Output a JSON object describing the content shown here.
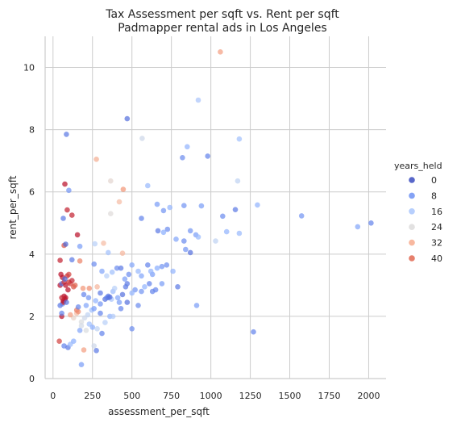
{
  "chart_data": {
    "type": "scatter",
    "title": "Tax Assessment per sqft vs. Rent per sqft",
    "subtitle": "Padmapper rental ads in Los Angeles",
    "xlabel": "assessment_per_sqft",
    "ylabel": "rent_per_sqft",
    "xlim": [
      -50,
      2110
    ],
    "ylim": [
      0,
      11
    ],
    "x_ticks": [
      0,
      250,
      500,
      750,
      1000,
      1250,
      1500,
      1750,
      2000
    ],
    "y_ticks": [
      0,
      2,
      4,
      6,
      8,
      10
    ],
    "grid": true,
    "hue": "years_held",
    "colormap": "coolwarm",
    "hue_range": [
      0,
      45
    ],
    "legend": {
      "title": "years_held",
      "placement": "right",
      "entries": [
        {
          "label": "0",
          "value": 0,
          "color": "#3b4cc0"
        },
        {
          "label": "8",
          "value": 8,
          "color": "#6f92f3"
        },
        {
          "label": "16",
          "value": 16,
          "color": "#aac7fd"
        },
        {
          "label": "24",
          "value": 24,
          "color": "#dddcdc"
        },
        {
          "label": "32",
          "value": 32,
          "color": "#f7ac8e"
        },
        {
          "label": "40",
          "value": 40,
          "color": "#e26952"
        }
      ]
    },
    "points": [
      [
        1060,
        10.5,
        33
      ],
      [
        920,
        8.95,
        15
      ],
      [
        470,
        8.35,
        4
      ],
      [
        85,
        7.85,
        5
      ],
      [
        565,
        7.72,
        20
      ],
      [
        850,
        7.45,
        12
      ],
      [
        1180,
        7.7,
        14
      ],
      [
        980,
        7.15,
        6
      ],
      [
        820,
        7.1,
        7
      ],
      [
        275,
        7.05,
        31
      ],
      [
        600,
        6.2,
        13
      ],
      [
        1170,
        6.35,
        18
      ],
      [
        75,
        6.25,
        44
      ],
      [
        100,
        6.05,
        8
      ],
      [
        445,
        6.08,
        34
      ],
      [
        365,
        6.35,
        24
      ],
      [
        65,
        5.15,
        5
      ],
      [
        90,
        5.42,
        43
      ],
      [
        120,
        5.25,
        43
      ],
      [
        560,
        5.15,
        6
      ],
      [
        660,
        5.6,
        9
      ],
      [
        700,
        5.4,
        8
      ],
      [
        740,
        5.5,
        12
      ],
      [
        830,
        5.56,
        8
      ],
      [
        940,
        5.55,
        9
      ],
      [
        1075,
        5.22,
        7
      ],
      [
        1155,
        5.43,
        5
      ],
      [
        1295,
        5.58,
        12
      ],
      [
        1575,
        5.23,
        8
      ],
      [
        2015,
        5.0,
        6
      ],
      [
        1930,
        4.88,
        10
      ],
      [
        1100,
        4.72,
        12
      ],
      [
        1180,
        4.67,
        13
      ],
      [
        1030,
        4.42,
        18
      ],
      [
        420,
        5.68,
        29
      ],
      [
        365,
        5.3,
        23
      ],
      [
        320,
        4.35,
        29
      ],
      [
        265,
        4.33,
        17
      ],
      [
        70,
        4.28,
        40
      ],
      [
        80,
        4.32,
        3
      ],
      [
        155,
        4.62,
        44
      ],
      [
        170,
        4.25,
        9
      ],
      [
        725,
        4.8,
        7
      ],
      [
        665,
        4.75,
        5
      ],
      [
        870,
        4.75,
        8
      ],
      [
        780,
        4.48,
        10
      ],
      [
        830,
        4.42,
        7
      ],
      [
        905,
        4.62,
        9
      ],
      [
        920,
        4.55,
        13
      ],
      [
        700,
        4.7,
        11
      ],
      [
        840,
        4.15,
        8
      ],
      [
        870,
        4.05,
        4
      ],
      [
        120,
        3.82,
        5
      ],
      [
        45,
        3.8,
        43
      ],
      [
        170,
        3.78,
        36
      ],
      [
        260,
        3.68,
        7
      ],
      [
        310,
        3.45,
        10
      ],
      [
        340,
        3.3,
        17
      ],
      [
        375,
        3.42,
        14
      ],
      [
        405,
        3.55,
        7
      ],
      [
        430,
        3.55,
        5
      ],
      [
        455,
        3.2,
        9
      ],
      [
        500,
        3.65,
        10
      ],
      [
        540,
        3.45,
        13
      ],
      [
        560,
        3.3,
        10
      ],
      [
        600,
        3.65,
        6
      ],
      [
        630,
        3.35,
        9
      ],
      [
        660,
        3.55,
        11
      ],
      [
        690,
        3.6,
        8
      ],
      [
        720,
        3.65,
        7
      ],
      [
        760,
        3.45,
        12
      ],
      [
        790,
        2.95,
        5
      ],
      [
        610,
        3.05,
        6
      ],
      [
        650,
        2.85,
        6
      ],
      [
        690,
        3.05,
        9
      ],
      [
        580,
        2.95,
        12
      ],
      [
        520,
        2.85,
        8
      ],
      [
        480,
        3.35,
        7
      ],
      [
        460,
        2.95,
        5
      ],
      [
        440,
        2.7,
        4
      ],
      [
        410,
        2.6,
        10
      ],
      [
        380,
        2.8,
        13
      ],
      [
        350,
        2.65,
        5
      ],
      [
        330,
        2.55,
        4
      ],
      [
        300,
        2.4,
        8
      ],
      [
        270,
        2.5,
        12
      ],
      [
        245,
        2.2,
        14
      ],
      [
        220,
        2.05,
        18
      ],
      [
        200,
        1.95,
        20
      ],
      [
        180,
        1.82,
        22
      ],
      [
        150,
        2.1,
        29
      ],
      [
        130,
        1.95,
        25
      ],
      [
        110,
        2.05,
        33
      ],
      [
        210,
        2.35,
        10
      ],
      [
        190,
        2.9,
        34
      ],
      [
        230,
        2.9,
        35
      ],
      [
        280,
        2.95,
        30
      ],
      [
        300,
        2.75,
        5
      ],
      [
        340,
        2.6,
        6
      ],
      [
        370,
        2.55,
        15
      ],
      [
        390,
        2.9,
        17
      ],
      [
        420,
        2.45,
        9
      ],
      [
        470,
        2.45,
        4
      ],
      [
        540,
        2.35,
        7
      ],
      [
        500,
        1.6,
        7
      ],
      [
        910,
        2.35,
        9
      ],
      [
        1270,
        1.5,
        6
      ],
      [
        260,
        2.25,
        9
      ],
      [
        230,
        1.75,
        14
      ],
      [
        300,
        2.1,
        6
      ],
      [
        330,
        1.8,
        17
      ],
      [
        360,
        2.0,
        12
      ],
      [
        380,
        2.0,
        16
      ],
      [
        250,
        1.65,
        11
      ],
      [
        280,
        1.6,
        18
      ],
      [
        310,
        1.45,
        6
      ],
      [
        260,
        1.05,
        20
      ],
      [
        275,
        0.9,
        5
      ],
      [
        195,
        0.92,
        33
      ],
      [
        180,
        0.45,
        9
      ],
      [
        40,
        1.2,
        41
      ],
      [
        70,
        1.05,
        6
      ],
      [
        95,
        1.0,
        5
      ],
      [
        110,
        1.1,
        13
      ],
      [
        130,
        1.2,
        11
      ],
      [
        170,
        1.55,
        10
      ],
      [
        180,
        1.7,
        21
      ],
      [
        150,
        2.2,
        37
      ],
      [
        160,
        2.15,
        35
      ],
      [
        55,
        2.0,
        44
      ],
      [
        45,
        3.0,
        44
      ],
      [
        55,
        3.05,
        4
      ],
      [
        60,
        2.4,
        7
      ],
      [
        65,
        2.45,
        43
      ],
      [
        70,
        2.65,
        44
      ],
      [
        75,
        2.55,
        44
      ],
      [
        80,
        2.6,
        44
      ],
      [
        60,
        3.25,
        44
      ],
      [
        70,
        3.1,
        42
      ],
      [
        80,
        3.0,
        44
      ],
      [
        90,
        3.3,
        42
      ],
      [
        100,
        3.1,
        42
      ],
      [
        110,
        3.05,
        41
      ],
      [
        120,
        3.15,
        43
      ],
      [
        130,
        2.95,
        40
      ],
      [
        95,
        2.85,
        44
      ],
      [
        75,
        3.2,
        3
      ],
      [
        50,
        3.35,
        44
      ],
      [
        65,
        2.5,
        44
      ],
      [
        85,
        2.45,
        4
      ],
      [
        100,
        3.35,
        41
      ],
      [
        140,
        3.0,
        39
      ],
      [
        55,
        2.1,
        6
      ],
      [
        160,
        2.3,
        6
      ],
      [
        210,
        1.55,
        22
      ],
      [
        45,
        2.35,
        5
      ],
      [
        55,
        2.6,
        43
      ],
      [
        225,
        2.6,
        8
      ],
      [
        195,
        2.7,
        6
      ],
      [
        350,
        4.05,
        14
      ],
      [
        440,
        4.03,
        30
      ],
      [
        470,
        3.05,
        5
      ],
      [
        430,
        2.25,
        6
      ],
      [
        500,
        2.75,
        12
      ],
      [
        350,
        2.6,
        5
      ],
      [
        360,
        2.62,
        4
      ],
      [
        620,
        3.45,
        12
      ],
      [
        560,
        2.8,
        8
      ],
      [
        630,
        2.8,
        6
      ]
    ]
  }
}
